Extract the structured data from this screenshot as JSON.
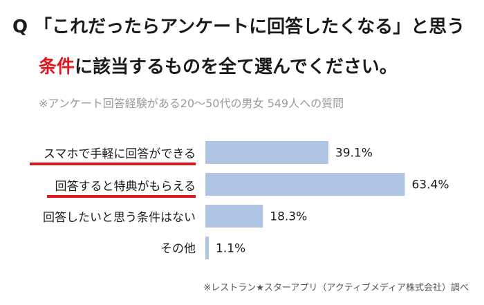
{
  "title": {
    "line1": "Q 「これだったらアンケートに回答したくなる」と思う",
    "line2_accent": "条件",
    "line2_rest": "に該当するものを全て選んでください。"
  },
  "subtitle": "※アンケート回答経験がある20～50代の男女 549人への質問",
  "credit": "※レストラン★スターアプリ（アクティブメディア株式会社）調べ",
  "colors": {
    "bar": "#b0c4e3",
    "accent": "#e0191f",
    "text": "#1a1a1a"
  },
  "chart_data": {
    "type": "bar",
    "orientation": "horizontal",
    "categories": [
      "スマホで手軽に回答ができる",
      "回答すると特典がもらえる",
      "回答したいと思う条件はない",
      "その他"
    ],
    "values": [
      39.1,
      63.4,
      18.3,
      1.1
    ],
    "value_labels": [
      "39.1%",
      "63.4%",
      "18.3%",
      "1.1%"
    ],
    "highlighted": [
      true,
      true,
      false,
      false
    ],
    "xlim": [
      0,
      100
    ],
    "grid": false
  }
}
